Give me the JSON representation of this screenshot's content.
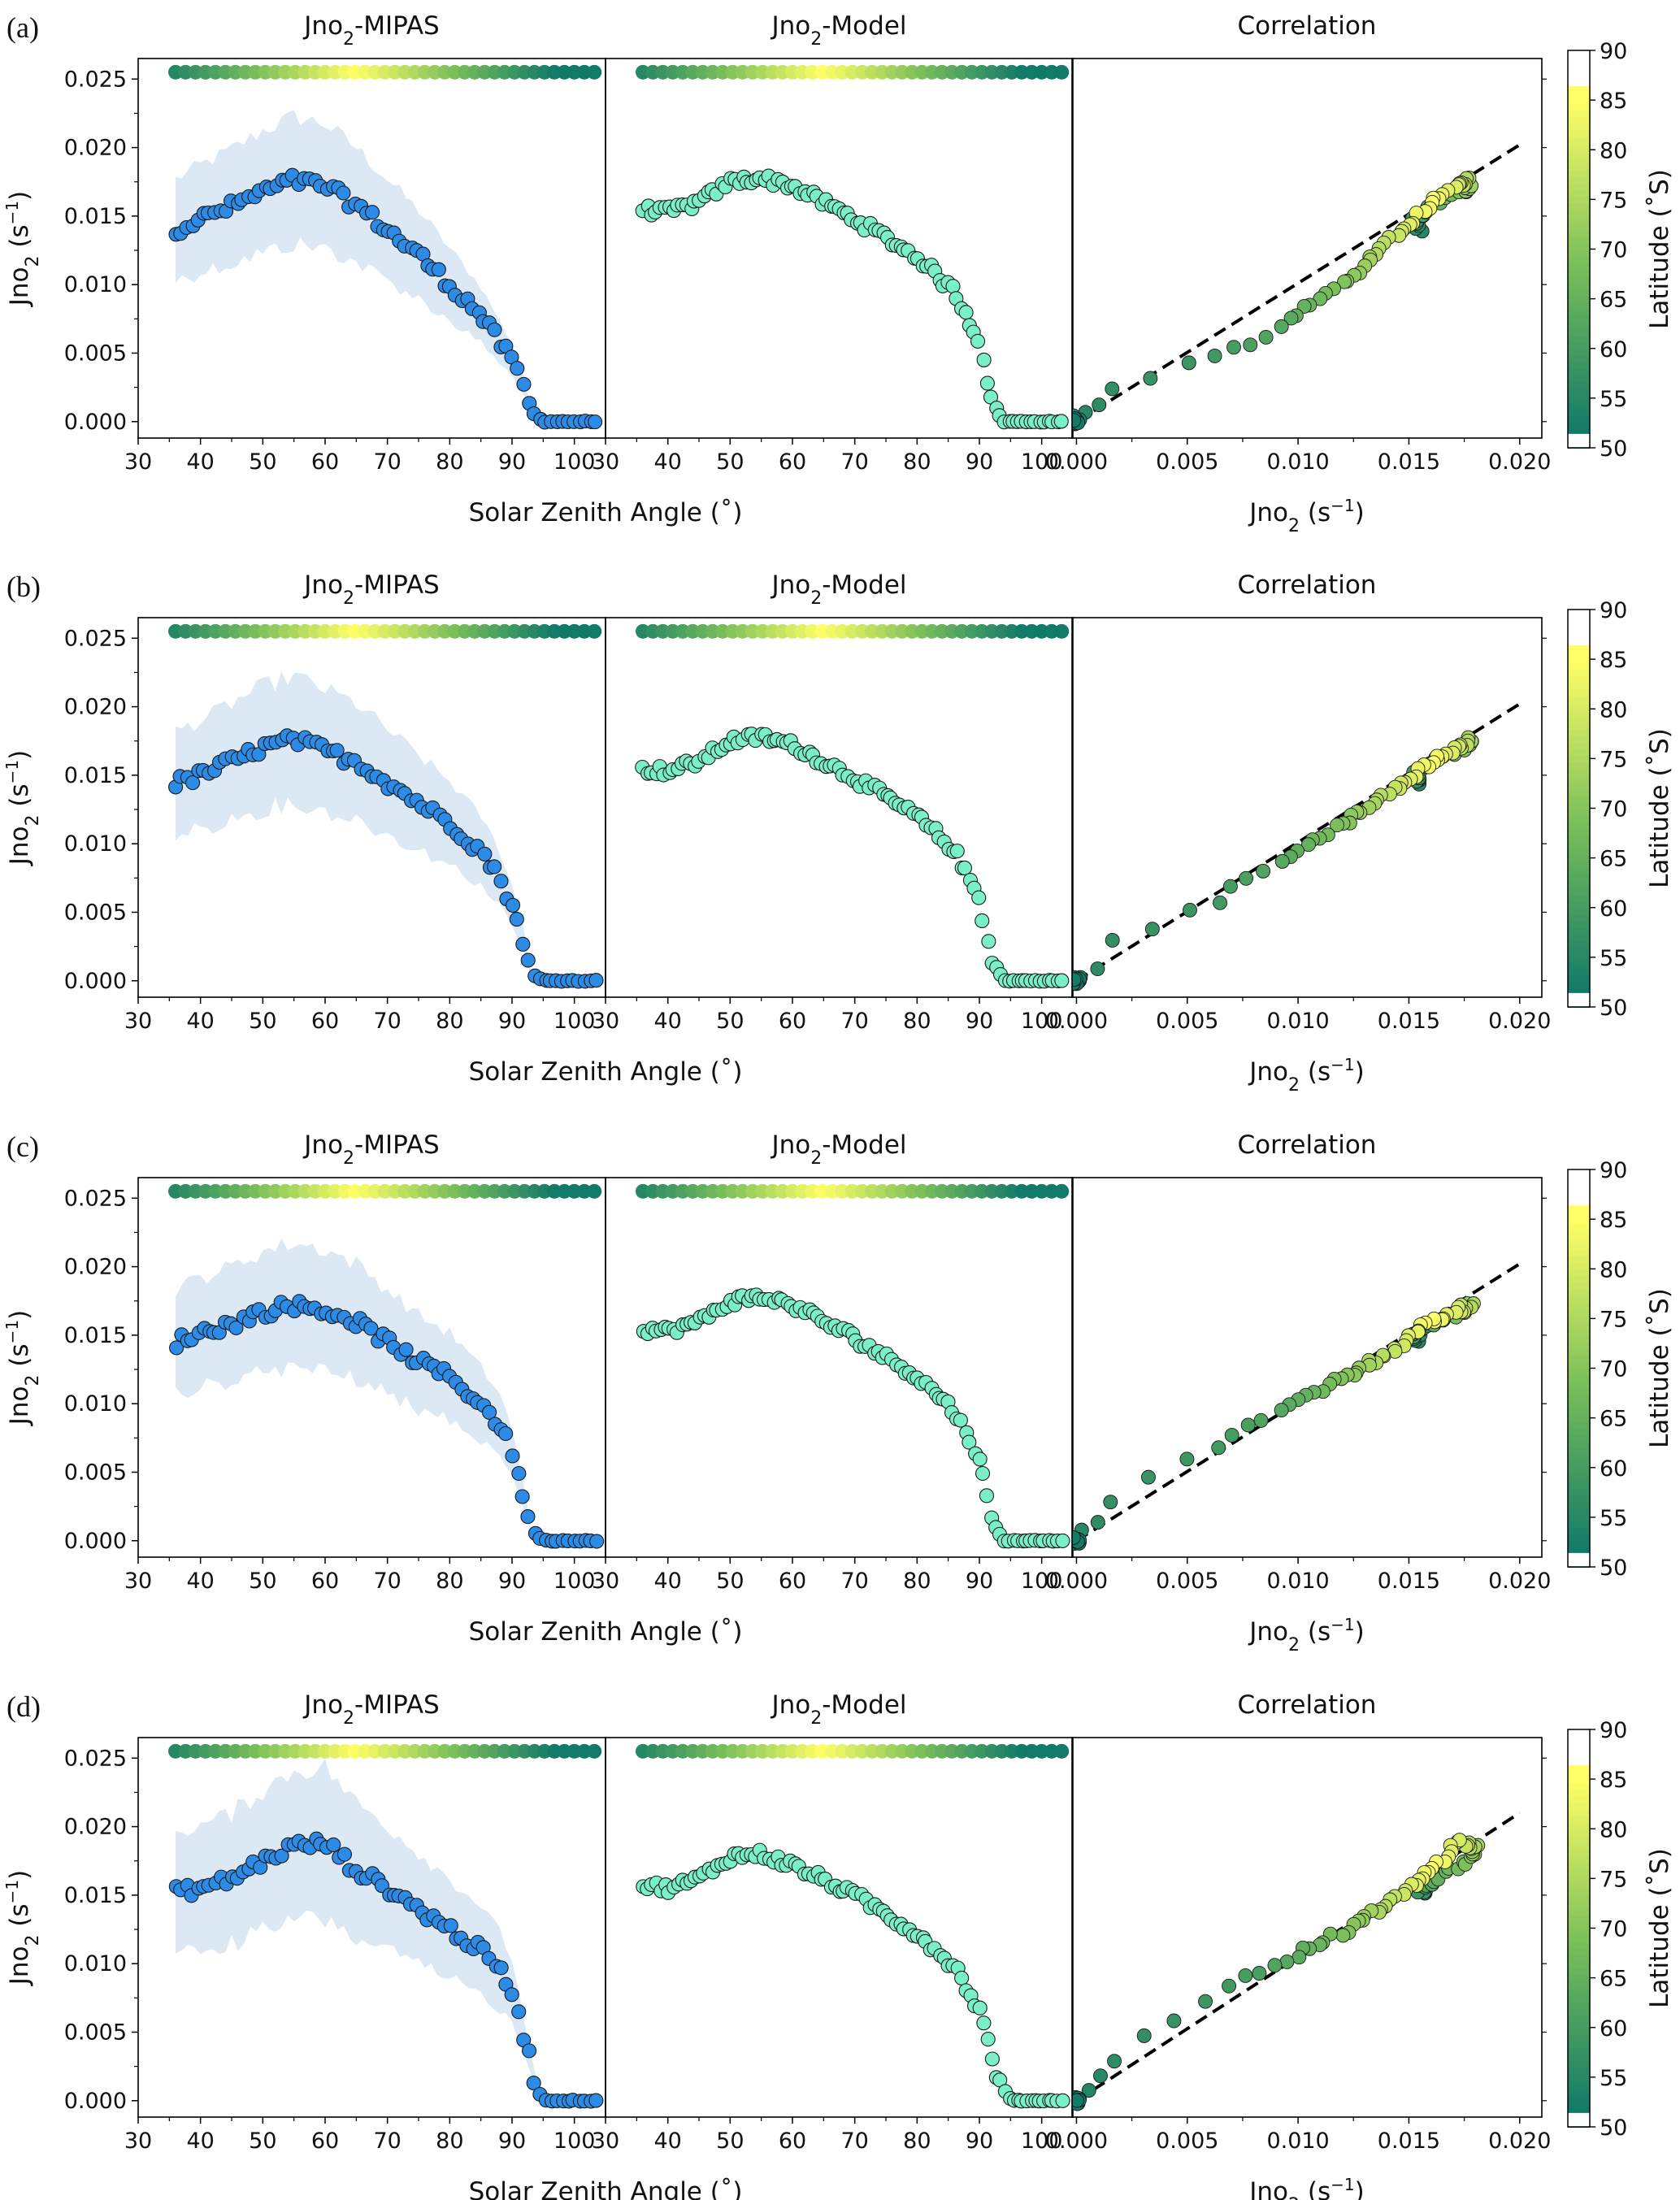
{
  "figure": {
    "rows": [
      {
        "letter": "(a)"
      },
      {
        "letter": "(b)"
      },
      {
        "letter": "(c)"
      },
      {
        "letter": "(d)"
      }
    ],
    "panel_titles": {
      "mipas": [
        "Jno",
        "2",
        "-MIPAS"
      ],
      "model": [
        "Jno",
        "2",
        "-Model"
      ],
      "correlation": "Correlation"
    },
    "xlabel_sza": "Solar Zenith Angle (˚)",
    "xlabel_j": [
      "Jno",
      "2",
      " (s",
      "−1",
      ")"
    ],
    "ylabel": [
      "Jno",
      "2",
      " (s",
      "−1",
      ")"
    ],
    "colorbar_label": "Latitude (˚S)",
    "colorbar_ticks": [
      "50",
      "55",
      "60",
      "65",
      "70",
      "75",
      "80",
      "85",
      "90"
    ],
    "y_ticks": [
      "0.000",
      "0.005",
      "0.010",
      "0.015",
      "0.020",
      "0.025"
    ],
    "sza_ticks": [
      "30",
      "40",
      "50",
      "60",
      "70",
      "80",
      "90",
      "100"
    ],
    "j_ticks": [
      "0.000",
      "0.005",
      "0.010",
      "0.015",
      "0.020"
    ],
    "colors": {
      "mipas_points": "#2b8be6",
      "mipas_band": "#dce9f5",
      "model_points": "#7af0c8",
      "latitude_low": "#127a68",
      "latitude_high": "#ffff66",
      "fit_line": "#000000"
    }
  },
  "chart_data": [
    {
      "row": "(a)",
      "type": "scatter",
      "panels": [
        "Jno2-MIPAS vs SZA",
        "Jno2-Model vs SZA",
        "Correlation Jno2"
      ],
      "sza_range": [
        30,
        105
      ],
      "j_range": [
        -0.0012,
        0.0265
      ],
      "corr_xrange": [
        -0.0002,
        0.021
      ],
      "mipas_profile": [
        [
          36,
          0.014
        ],
        [
          40,
          0.0148
        ],
        [
          45,
          0.0157
        ],
        [
          50,
          0.0168
        ],
        [
          55,
          0.0176
        ],
        [
          60,
          0.0172
        ],
        [
          65,
          0.0158
        ],
        [
          70,
          0.014
        ],
        [
          75,
          0.0122
        ],
        [
          80,
          0.01
        ],
        [
          85,
          0.0078
        ],
        [
          88,
          0.0058
        ],
        [
          90,
          0.0045
        ],
        [
          92,
          0.0025
        ],
        [
          93,
          0.0008
        ],
        [
          95,
          0.0
        ],
        [
          104,
          0.0
        ]
      ],
      "mipas_band_halfwidth": 0.0045,
      "model_profile": [
        [
          35,
          0.0155
        ],
        [
          40,
          0.0153
        ],
        [
          45,
          0.016
        ],
        [
          50,
          0.0175
        ],
        [
          55,
          0.0178
        ],
        [
          60,
          0.0172
        ],
        [
          70,
          0.0148
        ],
        [
          80,
          0.012
        ],
        [
          86,
          0.0095
        ],
        [
          90,
          0.006
        ],
        [
          92,
          0.0015
        ],
        [
          94,
          0.0
        ],
        [
          104,
          0.0
        ]
      ],
      "correlation_fit": [
        [
          0.0,
          0.0
        ],
        [
          0.02,
          0.0202
        ]
      ]
    },
    {
      "row": "(b)",
      "type": "scatter",
      "sza_range": [
        30,
        105
      ],
      "j_range": [
        -0.0012,
        0.0265
      ],
      "corr_xrange": [
        -0.0002,
        0.021
      ],
      "mipas_profile": [
        [
          36,
          0.0144
        ],
        [
          40,
          0.015
        ],
        [
          45,
          0.016
        ],
        [
          50,
          0.017
        ],
        [
          55,
          0.0176
        ],
        [
          60,
          0.0168
        ],
        [
          65,
          0.016
        ],
        [
          70,
          0.0145
        ],
        [
          75,
          0.013
        ],
        [
          80,
          0.0115
        ],
        [
          85,
          0.0095
        ],
        [
          88,
          0.0075
        ],
        [
          90,
          0.0055
        ],
        [
          92,
          0.0028
        ],
        [
          93,
          0.0005
        ],
        [
          95,
          0.0
        ],
        [
          104,
          0.0
        ]
      ],
      "mipas_band_halfwidth": 0.0045,
      "model_profile": [
        [
          35,
          0.0155
        ],
        [
          40,
          0.0153
        ],
        [
          45,
          0.016
        ],
        [
          50,
          0.0175
        ],
        [
          55,
          0.0178
        ],
        [
          60,
          0.0172
        ],
        [
          70,
          0.0148
        ],
        [
          80,
          0.012
        ],
        [
          86,
          0.0095
        ],
        [
          90,
          0.006
        ],
        [
          92,
          0.0015
        ],
        [
          94,
          0.0
        ],
        [
          104,
          0.0
        ]
      ],
      "correlation_fit": [
        [
          0.0,
          0.0
        ],
        [
          0.02,
          0.0202
        ]
      ]
    },
    {
      "row": "(c)",
      "type": "scatter",
      "sza_range": [
        30,
        105
      ],
      "j_range": [
        -0.0012,
        0.0265
      ],
      "corr_xrange": [
        -0.0002,
        0.021
      ],
      "mipas_profile": [
        [
          36,
          0.0145
        ],
        [
          40,
          0.0152
        ],
        [
          45,
          0.0158
        ],
        [
          50,
          0.0167
        ],
        [
          55,
          0.0172
        ],
        [
          60,
          0.0168
        ],
        [
          65,
          0.016
        ],
        [
          70,
          0.0145
        ],
        [
          75,
          0.013
        ],
        [
          80,
          0.012
        ],
        [
          85,
          0.01
        ],
        [
          88,
          0.0085
        ],
        [
          90,
          0.0065
        ],
        [
          92,
          0.003
        ],
        [
          93,
          0.0008
        ],
        [
          95,
          0.0
        ],
        [
          104,
          0.0
        ]
      ],
      "mipas_band_halfwidth": 0.0045,
      "model_profile": [
        [
          35,
          0.0155
        ],
        [
          40,
          0.0153
        ],
        [
          45,
          0.016
        ],
        [
          50,
          0.0175
        ],
        [
          55,
          0.0178
        ],
        [
          60,
          0.0172
        ],
        [
          70,
          0.0148
        ],
        [
          80,
          0.012
        ],
        [
          86,
          0.0095
        ],
        [
          90,
          0.006
        ],
        [
          92,
          0.0015
        ],
        [
          94,
          0.0
        ],
        [
          104,
          0.0
        ]
      ],
      "correlation_fit": [
        [
          0.0,
          0.0
        ],
        [
          0.02,
          0.0202
        ]
      ]
    },
    {
      "row": "(d)",
      "type": "scatter",
      "sza_range": [
        30,
        105
      ],
      "j_range": [
        -0.0012,
        0.0265
      ],
      "corr_xrange": [
        -0.0002,
        0.021
      ],
      "mipas_profile": [
        [
          36,
          0.0152
        ],
        [
          40,
          0.0155
        ],
        [
          45,
          0.0162
        ],
        [
          50,
          0.0175
        ],
        [
          55,
          0.0186
        ],
        [
          60,
          0.0188
        ],
        [
          65,
          0.0168
        ],
        [
          70,
          0.0155
        ],
        [
          75,
          0.014
        ],
        [
          80,
          0.0125
        ],
        [
          85,
          0.011
        ],
        [
          88,
          0.0095
        ],
        [
          90,
          0.008
        ],
        [
          92,
          0.0045
        ],
        [
          94,
          0.001
        ],
        [
          95,
          0.0
        ],
        [
          104,
          0.0
        ]
      ],
      "mipas_band_halfwidth": 0.005,
      "model_profile": [
        [
          35,
          0.0158
        ],
        [
          40,
          0.0155
        ],
        [
          45,
          0.0162
        ],
        [
          50,
          0.0178
        ],
        [
          55,
          0.018
        ],
        [
          60,
          0.0172
        ],
        [
          70,
          0.015
        ],
        [
          80,
          0.0122
        ],
        [
          86,
          0.0098
        ],
        [
          90,
          0.0065
        ],
        [
          93,
          0.0015
        ],
        [
          95,
          0.0
        ],
        [
          104,
          0.0
        ]
      ],
      "correlation_fit": [
        [
          0.0,
          0.0
        ],
        [
          0.02,
          0.021
        ]
      ]
    }
  ]
}
